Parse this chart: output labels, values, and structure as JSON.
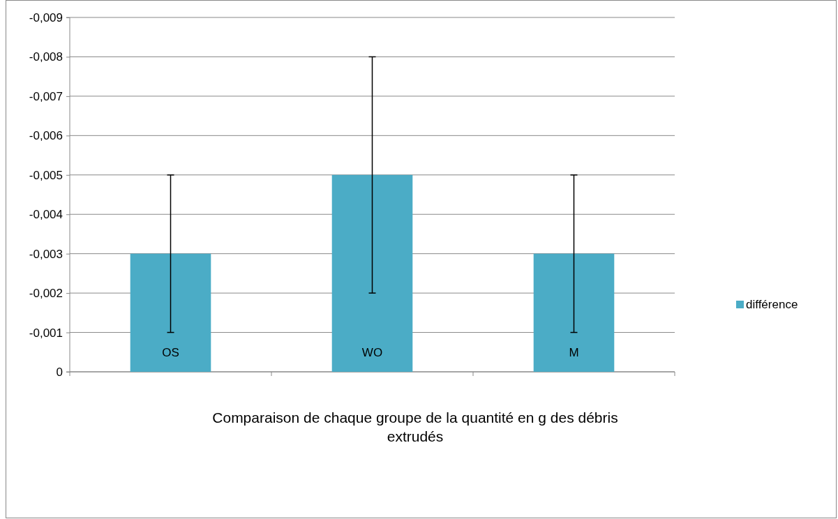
{
  "chart_data": {
    "type": "bar",
    "xlabel": "Comparaison de chaque groupe de la quantité en g des débris extrudés",
    "categories": [
      "OS",
      "WO",
      "M"
    ],
    "series": [
      {
        "name": "différence",
        "color": "#4bacc6",
        "values": [
          -0.003,
          -0.005,
          -0.003
        ],
        "errors": [
          0.002,
          0.003,
          0.002
        ]
      }
    ],
    "ylim": [
      0,
      -0.009
    ],
    "yticks": [
      {
        "value": 0,
        "label": "0"
      },
      {
        "value": -0.001,
        "label": "-0,001"
      },
      {
        "value": -0.002,
        "label": "-0,002"
      },
      {
        "value": -0.003,
        "label": "-0,003"
      },
      {
        "value": -0.004,
        "label": "-0,004"
      },
      {
        "value": -0.005,
        "label": "-0,005"
      },
      {
        "value": -0.006,
        "label": "-0,006"
      },
      {
        "value": -0.007,
        "label": "-0,007"
      },
      {
        "value": -0.008,
        "label": "-0,008"
      },
      {
        "value": -0.009,
        "label": "-0,009"
      }
    ],
    "grid": "y",
    "legend": "right"
  }
}
